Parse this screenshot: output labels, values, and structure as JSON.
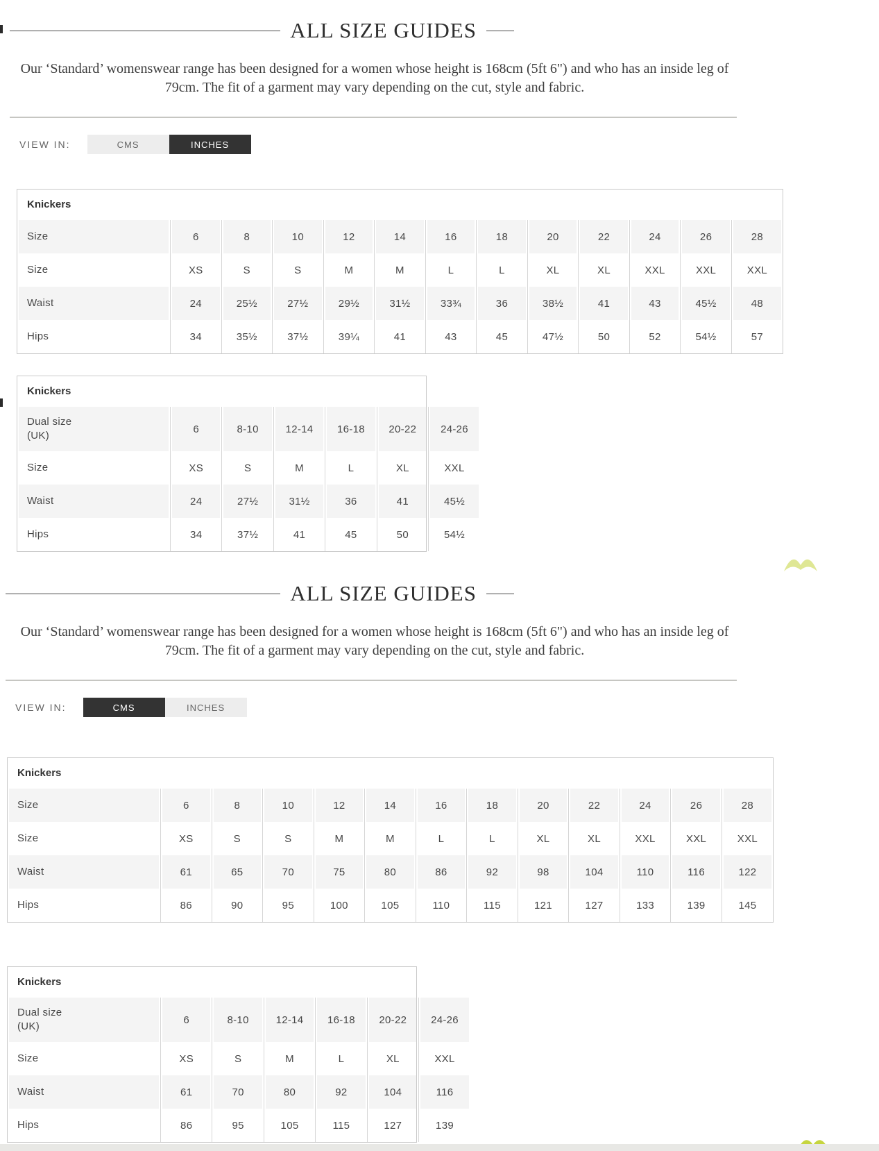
{
  "colors": {
    "toggle_active_bg": "#333333",
    "toggle_inactive_bg": "#ededed",
    "shaded_row_bg": "#f4f4f4",
    "accent_lime": "#c6d53e"
  },
  "artifacts": {
    "butterfly_icon_1": "butterfly-logo-fragment",
    "butterfly_icon_2": "butterfly-logo-fragment"
  },
  "sections": [
    {
      "unit": "INCHES",
      "title": "ALL SIZE GUIDES",
      "description": "Our ‘Standard’ womenswear range has been designed for a women whose height is 168cm (5ft 6\") and who has an inside leg of 79cm. The fit of a garment may vary depending on the cut, style and fabric.",
      "view_in_label": "VIEW IN:",
      "toggle": [
        {
          "label": "CMS",
          "active": false
        },
        {
          "label": "INCHES",
          "active": true
        }
      ],
      "tables": [
        {
          "name": "Knickers",
          "rows": [
            {
              "label": "Size",
              "shaded": true,
              "values": [
                "6",
                "8",
                "10",
                "12",
                "14",
                "16",
                "18",
                "20",
                "22",
                "24",
                "26",
                "28"
              ]
            },
            {
              "label": "Size",
              "shaded": false,
              "values": [
                "XS",
                "S",
                "S",
                "M",
                "M",
                "L",
                "L",
                "XL",
                "XL",
                "XXL",
                "XXL",
                "XXL"
              ]
            },
            {
              "label": "Waist",
              "shaded": true,
              "values": [
                "24",
                "25½",
                "27½",
                "29½",
                "31½",
                "33¾",
                "36",
                "38½",
                "41",
                "43",
                "45½",
                "48"
              ]
            },
            {
              "label": "Hips",
              "shaded": false,
              "values": [
                "34",
                "35½",
                "37½",
                "39¼",
                "41",
                "43",
                "45",
                "47½",
                "50",
                "52",
                "54½",
                "57"
              ]
            }
          ]
        },
        {
          "name": "Knickers",
          "rows": [
            {
              "label": "Dual size\n(UK)",
              "shaded": true,
              "dual": true,
              "values": [
                "6",
                "8-10",
                "12-14",
                "16-18",
                "20-22",
                "24-26"
              ]
            },
            {
              "label": "Size",
              "shaded": false,
              "values": [
                "XS",
                "S",
                "M",
                "L",
                "XL",
                "XXL"
              ]
            },
            {
              "label": "Waist",
              "shaded": true,
              "values": [
                "24",
                "27½",
                "31½",
                "36",
                "41",
                "45½"
              ]
            },
            {
              "label": "Hips",
              "shaded": false,
              "values": [
                "34",
                "37½",
                "41",
                "45",
                "50",
                "54½"
              ]
            }
          ]
        }
      ]
    },
    {
      "unit": "CMS",
      "title": "ALL SIZE GUIDES",
      "description": "Our ‘Standard’ womenswear range has been designed for a women whose height is 168cm (5ft 6\") and who has an inside leg of 79cm. The fit of a garment may vary depending on the cut, style and fabric.",
      "view_in_label": "VIEW IN:",
      "toggle": [
        {
          "label": "CMS",
          "active": true
        },
        {
          "label": "INCHES",
          "active": false
        }
      ],
      "tables": [
        {
          "name": "Knickers",
          "rows": [
            {
              "label": "Size",
              "shaded": true,
              "values": [
                "6",
                "8",
                "10",
                "12",
                "14",
                "16",
                "18",
                "20",
                "22",
                "24",
                "26",
                "28"
              ]
            },
            {
              "label": "Size",
              "shaded": false,
              "values": [
                "XS",
                "S",
                "S",
                "M",
                "M",
                "L",
                "L",
                "XL",
                "XL",
                "XXL",
                "XXL",
                "XXL"
              ]
            },
            {
              "label": "Waist",
              "shaded": true,
              "values": [
                "61",
                "65",
                "70",
                "75",
                "80",
                "86",
                "92",
                "98",
                "104",
                "110",
                "116",
                "122"
              ]
            },
            {
              "label": "Hips",
              "shaded": false,
              "values": [
                "86",
                "90",
                "95",
                "100",
                "105",
                "110",
                "115",
                "121",
                "127",
                "133",
                "139",
                "145"
              ]
            }
          ]
        },
        {
          "name": "Knickers",
          "rows": [
            {
              "label": "Dual size\n(UK)",
              "shaded": true,
              "dual": true,
              "values": [
                "6",
                "8-10",
                "12-14",
                "16-18",
                "20-22",
                "24-26"
              ]
            },
            {
              "label": "Size",
              "shaded": false,
              "values": [
                "XS",
                "S",
                "M",
                "L",
                "XL",
                "XXL"
              ]
            },
            {
              "label": "Waist",
              "shaded": true,
              "values": [
                "61",
                "70",
                "80",
                "92",
                "104",
                "116"
              ]
            },
            {
              "label": "Hips",
              "shaded": false,
              "values": [
                "86",
                "95",
                "105",
                "115",
                "127",
                "139"
              ]
            }
          ]
        }
      ]
    }
  ]
}
